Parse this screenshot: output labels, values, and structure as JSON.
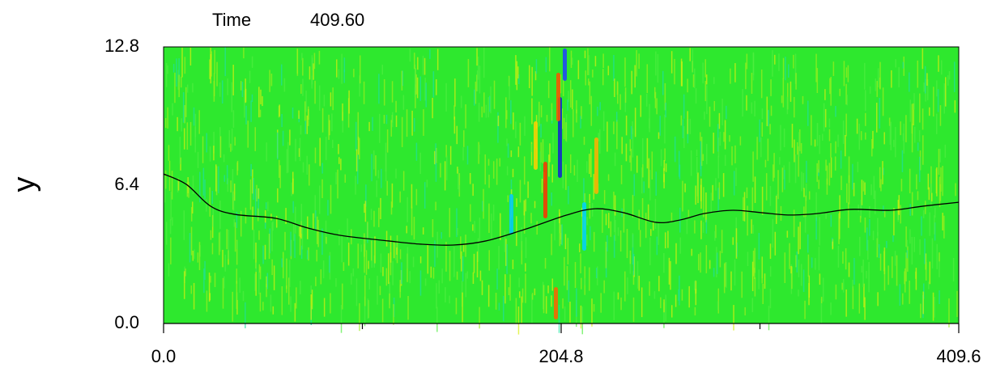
{
  "chart_data": {
    "type": "line",
    "title": "Time",
    "subtitle": "409.60",
    "y_label": "y",
    "x": [
      0,
      11.7,
      24.2,
      36.7,
      57.6,
      74.2,
      90.9,
      115.9,
      132.6,
      149.3,
      166.0,
      186.9,
      207.7,
      222.3,
      236.9,
      253.6,
      266.1,
      278.6,
      293.2,
      307.8,
      322.4,
      337.0,
      353.7,
      374.6,
      391.2,
      409.6
    ],
    "values": [
      6.92,
      6.44,
      5.43,
      5.05,
      4.87,
      4.42,
      4.08,
      3.82,
      3.67,
      3.63,
      3.82,
      4.38,
      5.02,
      5.31,
      5.13,
      4.68,
      4.79,
      5.09,
      5.24,
      5.13,
      5.02,
      5.09,
      5.28,
      5.24,
      5.43,
      5.61
    ],
    "color": "#000000",
    "xlim": [
      0,
      409.6
    ],
    "xticks": [
      {
        "value": 0,
        "label": "0.0"
      },
      {
        "value": 204.8,
        "label": "204.8"
      },
      {
        "value": 409.6,
        "label": "409.6"
      }
    ],
    "xminor_ticks": [
      102.4,
      307.2
    ],
    "ylim": [
      0,
      12.8
    ],
    "yticks": [
      {
        "value": 0,
        "label": "0.0"
      },
      {
        "value": 6.4,
        "label": "6.4"
      },
      {
        "value": 12.8,
        "label": "12.8"
      }
    ]
  }
}
